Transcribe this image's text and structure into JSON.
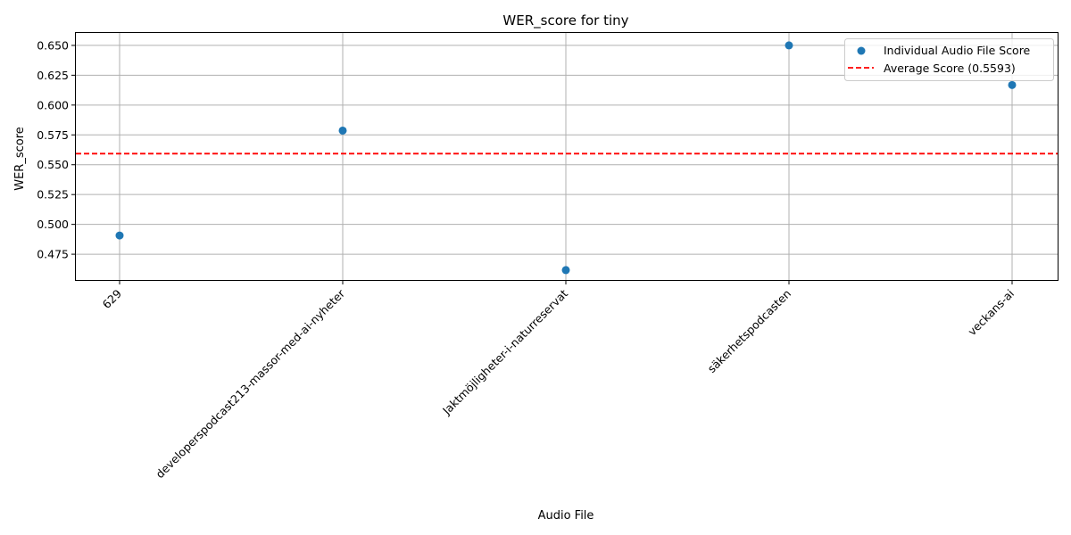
{
  "chart_data": {
    "type": "scatter",
    "title": "WER_score for tiny",
    "xlabel": "Audio File",
    "ylabel": "WER_score",
    "categories": [
      "629",
      "developerspodcast213-massor-med-ai-nyheter",
      "Jaktmöjligheter-i-naturreservat",
      "säkerhetspodcasten",
      "veckans-ai"
    ],
    "series": [
      {
        "name": "Individual Audio File Score",
        "values": [
          0.4907,
          0.5786,
          0.4617,
          0.65,
          0.6168
        ],
        "color": "#1f77b4"
      }
    ],
    "average": {
      "name": "Average Score (0.5593)",
      "value": 0.5593,
      "color": "#ff0000",
      "style": "dashed"
    },
    "ylim": [
      0.4534,
      0.6604
    ],
    "yticks": [
      0.475,
      0.5,
      0.525,
      0.55,
      0.575,
      0.6,
      0.625,
      0.65
    ],
    "ytick_labels": [
      "0.475",
      "0.500",
      "0.525",
      "0.550",
      "0.575",
      "0.600",
      "0.625",
      "0.650"
    ],
    "grid": true,
    "legend_position": "top-right"
  }
}
